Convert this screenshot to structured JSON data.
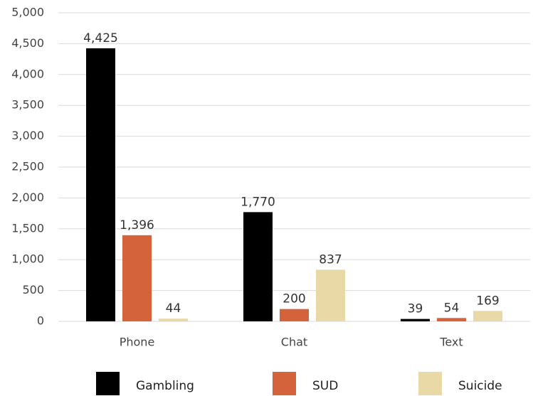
{
  "chart_data": {
    "type": "bar",
    "categories": [
      "Phone",
      "Chat",
      "Text"
    ],
    "series": [
      {
        "name": "Gambling",
        "color": "#000000",
        "values": [
          4425,
          1770,
          39
        ],
        "value_labels": [
          "4,425",
          "1,770",
          "39"
        ]
      },
      {
        "name": "SUD",
        "color": "#d4623a",
        "values": [
          1396,
          200,
          54
        ],
        "value_labels": [
          "1,396",
          "200",
          "54"
        ]
      },
      {
        "name": "Suicide",
        "color": "#e8d9a6",
        "values": [
          44,
          837,
          169
        ],
        "value_labels": [
          "44",
          "837",
          "169"
        ]
      }
    ],
    "ylim": [
      0,
      5000
    ],
    "yticks": [
      0,
      500,
      {
        "value": 1000,
        "label": "1,000"
      },
      {
        "value": 1500,
        "label": "1,500"
      },
      {
        "value": 2000,
        "label": "2,000"
      },
      {
        "value": 2500,
        "label": "2,500"
      },
      {
        "value": 3000,
        "label": "3,000"
      },
      {
        "value": 3500,
        "label": "3,500"
      },
      {
        "value": 4000,
        "label": "4,000"
      },
      {
        "value": 4500,
        "label": "4,500"
      },
      {
        "value": 5000,
        "label": "5,000"
      }
    ],
    "grid": true,
    "legend": "bottom"
  }
}
